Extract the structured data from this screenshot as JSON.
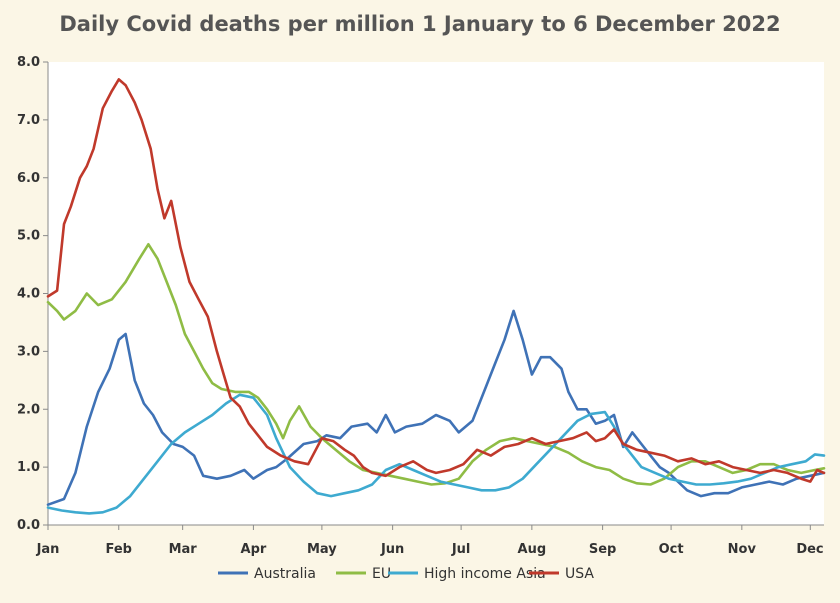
{
  "chart_data": {
    "type": "line",
    "title": "Daily Covid deaths per million 1 January  to 6 December 2022",
    "xlabel": "",
    "ylabel": "",
    "x_ticks": [
      "Jan",
      "Feb",
      "Mar",
      "Apr",
      "May",
      "Jun",
      "Jul",
      "Aug",
      "Sep",
      "Oct",
      "Nov",
      "Dec"
    ],
    "y_ticks": [
      "0.0",
      "1.0",
      "2.0",
      "3.0",
      "4.0",
      "5.0",
      "6.0",
      "7.0",
      "8.0"
    ],
    "ylim": [
      0,
      8
    ],
    "xlim_days": [
      0,
      340
    ],
    "grid": false,
    "legend_position": "bottom",
    "series": [
      {
        "name": "Australia",
        "color": "#3f72b6",
        "points": [
          [
            0,
            0.35
          ],
          [
            7,
            0.45
          ],
          [
            12,
            0.9
          ],
          [
            17,
            1.7
          ],
          [
            22,
            2.3
          ],
          [
            27,
            2.7
          ],
          [
            31,
            3.2
          ],
          [
            34,
            3.3
          ],
          [
            38,
            2.5
          ],
          [
            42,
            2.1
          ],
          [
            46,
            1.9
          ],
          [
            50,
            1.6
          ],
          [
            55,
            1.4
          ],
          [
            59,
            1.35
          ],
          [
            64,
            1.2
          ],
          [
            68,
            0.85
          ],
          [
            74,
            0.8
          ],
          [
            80,
            0.85
          ],
          [
            86,
            0.95
          ],
          [
            90,
            0.8
          ],
          [
            96,
            0.95
          ],
          [
            100,
            1.0
          ],
          [
            105,
            1.15
          ],
          [
            112,
            1.4
          ],
          [
            118,
            1.45
          ],
          [
            122,
            1.55
          ],
          [
            128,
            1.5
          ],
          [
            133,
            1.7
          ],
          [
            140,
            1.75
          ],
          [
            144,
            1.6
          ],
          [
            148,
            1.9
          ],
          [
            152,
            1.6
          ],
          [
            157,
            1.7
          ],
          [
            164,
            1.75
          ],
          [
            170,
            1.9
          ],
          [
            176,
            1.8
          ],
          [
            180,
            1.6
          ],
          [
            186,
            1.8
          ],
          [
            192,
            2.4
          ],
          [
            196,
            2.8
          ],
          [
            200,
            3.2
          ],
          [
            204,
            3.7
          ],
          [
            208,
            3.2
          ],
          [
            212,
            2.6
          ],
          [
            216,
            2.9
          ],
          [
            220,
            2.9
          ],
          [
            225,
            2.7
          ],
          [
            228,
            2.3
          ],
          [
            232,
            2.0
          ],
          [
            236,
            2.0
          ],
          [
            240,
            1.75
          ],
          [
            244,
            1.8
          ],
          [
            248,
            1.9
          ],
          [
            252,
            1.35
          ],
          [
            256,
            1.6
          ],
          [
            260,
            1.4
          ],
          [
            264,
            1.2
          ],
          [
            268,
            1.0
          ],
          [
            272,
            0.9
          ],
          [
            276,
            0.75
          ],
          [
            280,
            0.6
          ],
          [
            286,
            0.5
          ],
          [
            292,
            0.55
          ],
          [
            298,
            0.55
          ],
          [
            304,
            0.65
          ],
          [
            310,
            0.7
          ],
          [
            316,
            0.75
          ],
          [
            322,
            0.7
          ],
          [
            328,
            0.8
          ],
          [
            334,
            0.85
          ],
          [
            340,
            0.9
          ]
        ]
      },
      {
        "name": "EU",
        "color": "#8fbc45",
        "points": [
          [
            0,
            3.85
          ],
          [
            4,
            3.7
          ],
          [
            7,
            3.55
          ],
          [
            12,
            3.7
          ],
          [
            17,
            4.0
          ],
          [
            22,
            3.8
          ],
          [
            28,
            3.9
          ],
          [
            34,
            4.2
          ],
          [
            40,
            4.6
          ],
          [
            44,
            4.85
          ],
          [
            48,
            4.6
          ],
          [
            52,
            4.2
          ],
          [
            56,
            3.8
          ],
          [
            60,
            3.3
          ],
          [
            64,
            3.0
          ],
          [
            68,
            2.7
          ],
          [
            72,
            2.45
          ],
          [
            76,
            2.35
          ],
          [
            82,
            2.3
          ],
          [
            88,
            2.3
          ],
          [
            92,
            2.2
          ],
          [
            96,
            2.0
          ],
          [
            100,
            1.75
          ],
          [
            103,
            1.5
          ],
          [
            106,
            1.8
          ],
          [
            110,
            2.05
          ],
          [
            115,
            1.7
          ],
          [
            120,
            1.5
          ],
          [
            126,
            1.3
          ],
          [
            132,
            1.1
          ],
          [
            138,
            0.95
          ],
          [
            144,
            0.9
          ],
          [
            150,
            0.85
          ],
          [
            156,
            0.8
          ],
          [
            162,
            0.75
          ],
          [
            168,
            0.7
          ],
          [
            174,
            0.72
          ],
          [
            180,
            0.8
          ],
          [
            186,
            1.1
          ],
          [
            192,
            1.3
          ],
          [
            198,
            1.45
          ],
          [
            204,
            1.5
          ],
          [
            210,
            1.45
          ],
          [
            216,
            1.4
          ],
          [
            222,
            1.35
          ],
          [
            228,
            1.25
          ],
          [
            234,
            1.1
          ],
          [
            240,
            1.0
          ],
          [
            246,
            0.95
          ],
          [
            252,
            0.8
          ],
          [
            258,
            0.72
          ],
          [
            264,
            0.7
          ],
          [
            270,
            0.8
          ],
          [
            276,
            1.0
          ],
          [
            282,
            1.1
          ],
          [
            288,
            1.1
          ],
          [
            294,
            1.0
          ],
          [
            300,
            0.9
          ],
          [
            306,
            0.95
          ],
          [
            312,
            1.05
          ],
          [
            318,
            1.05
          ],
          [
            324,
            0.95
          ],
          [
            330,
            0.9
          ],
          [
            336,
            0.95
          ],
          [
            340,
            0.98
          ]
        ]
      },
      {
        "name": "High income Asia",
        "color": "#3eaad0",
        "points": [
          [
            0,
            0.3
          ],
          [
            6,
            0.25
          ],
          [
            12,
            0.22
          ],
          [
            18,
            0.2
          ],
          [
            24,
            0.22
          ],
          [
            30,
            0.3
          ],
          [
            36,
            0.5
          ],
          [
            42,
            0.8
          ],
          [
            48,
            1.1
          ],
          [
            54,
            1.4
          ],
          [
            60,
            1.6
          ],
          [
            66,
            1.75
          ],
          [
            72,
            1.9
          ],
          [
            78,
            2.1
          ],
          [
            84,
            2.25
          ],
          [
            90,
            2.2
          ],
          [
            96,
            1.9
          ],
          [
            100,
            1.5
          ],
          [
            106,
            1.0
          ],
          [
            112,
            0.75
          ],
          [
            118,
            0.55
          ],
          [
            124,
            0.5
          ],
          [
            130,
            0.55
          ],
          [
            136,
            0.6
          ],
          [
            142,
            0.7
          ],
          [
            148,
            0.95
          ],
          [
            154,
            1.05
          ],
          [
            160,
            0.95
          ],
          [
            166,
            0.85
          ],
          [
            172,
            0.75
          ],
          [
            178,
            0.7
          ],
          [
            184,
            0.65
          ],
          [
            190,
            0.6
          ],
          [
            196,
            0.6
          ],
          [
            202,
            0.65
          ],
          [
            208,
            0.8
          ],
          [
            214,
            1.05
          ],
          [
            220,
            1.3
          ],
          [
            226,
            1.55
          ],
          [
            232,
            1.8
          ],
          [
            238,
            1.92
          ],
          [
            244,
            1.95
          ],
          [
            248,
            1.7
          ],
          [
            252,
            1.4
          ],
          [
            256,
            1.2
          ],
          [
            260,
            1.0
          ],
          [
            266,
            0.9
          ],
          [
            272,
            0.8
          ],
          [
            278,
            0.75
          ],
          [
            284,
            0.7
          ],
          [
            290,
            0.7
          ],
          [
            296,
            0.72
          ],
          [
            302,
            0.75
          ],
          [
            308,
            0.8
          ],
          [
            314,
            0.9
          ],
          [
            320,
            1.0
          ],
          [
            326,
            1.05
          ],
          [
            332,
            1.1
          ],
          [
            336,
            1.22
          ],
          [
            340,
            1.2
          ]
        ]
      },
      {
        "name": "USA",
        "color": "#c0392b",
        "points": [
          [
            0,
            3.95
          ],
          [
            4,
            4.05
          ],
          [
            7,
            5.2
          ],
          [
            10,
            5.5
          ],
          [
            14,
            6.0
          ],
          [
            17,
            6.2
          ],
          [
            20,
            6.5
          ],
          [
            24,
            7.2
          ],
          [
            28,
            7.5
          ],
          [
            31,
            7.7
          ],
          [
            34,
            7.6
          ],
          [
            38,
            7.3
          ],
          [
            41,
            7.0
          ],
          [
            45,
            6.5
          ],
          [
            48,
            5.8
          ],
          [
            51,
            5.3
          ],
          [
            54,
            5.6
          ],
          [
            58,
            4.8
          ],
          [
            62,
            4.2
          ],
          [
            66,
            3.9
          ],
          [
            70,
            3.6
          ],
          [
            74,
            3.0
          ],
          [
            77,
            2.6
          ],
          [
            80,
            2.2
          ],
          [
            84,
            2.05
          ],
          [
            88,
            1.75
          ],
          [
            92,
            1.55
          ],
          [
            96,
            1.35
          ],
          [
            102,
            1.2
          ],
          [
            108,
            1.1
          ],
          [
            114,
            1.05
          ],
          [
            120,
            1.5
          ],
          [
            125,
            1.45
          ],
          [
            130,
            1.3
          ],
          [
            134,
            1.2
          ],
          [
            138,
            1.0
          ],
          [
            142,
            0.9
          ],
          [
            148,
            0.85
          ],
          [
            154,
            1.0
          ],
          [
            160,
            1.1
          ],
          [
            166,
            0.95
          ],
          [
            170,
            0.9
          ],
          [
            176,
            0.95
          ],
          [
            182,
            1.05
          ],
          [
            188,
            1.3
          ],
          [
            194,
            1.2
          ],
          [
            200,
            1.35
          ],
          [
            206,
            1.4
          ],
          [
            212,
            1.5
          ],
          [
            218,
            1.4
          ],
          [
            224,
            1.45
          ],
          [
            230,
            1.5
          ],
          [
            236,
            1.6
          ],
          [
            240,
            1.45
          ],
          [
            244,
            1.5
          ],
          [
            248,
            1.65
          ],
          [
            252,
            1.4
          ],
          [
            258,
            1.3
          ],
          [
            264,
            1.25
          ],
          [
            270,
            1.2
          ],
          [
            276,
            1.1
          ],
          [
            282,
            1.15
          ],
          [
            288,
            1.05
          ],
          [
            294,
            1.1
          ],
          [
            300,
            1.0
          ],
          [
            306,
            0.95
          ],
          [
            312,
            0.9
          ],
          [
            318,
            0.95
          ],
          [
            324,
            0.9
          ],
          [
            330,
            0.8
          ],
          [
            334,
            0.75
          ],
          [
            337,
            0.95
          ],
          [
            340,
            0.9
          ]
        ]
      }
    ]
  }
}
